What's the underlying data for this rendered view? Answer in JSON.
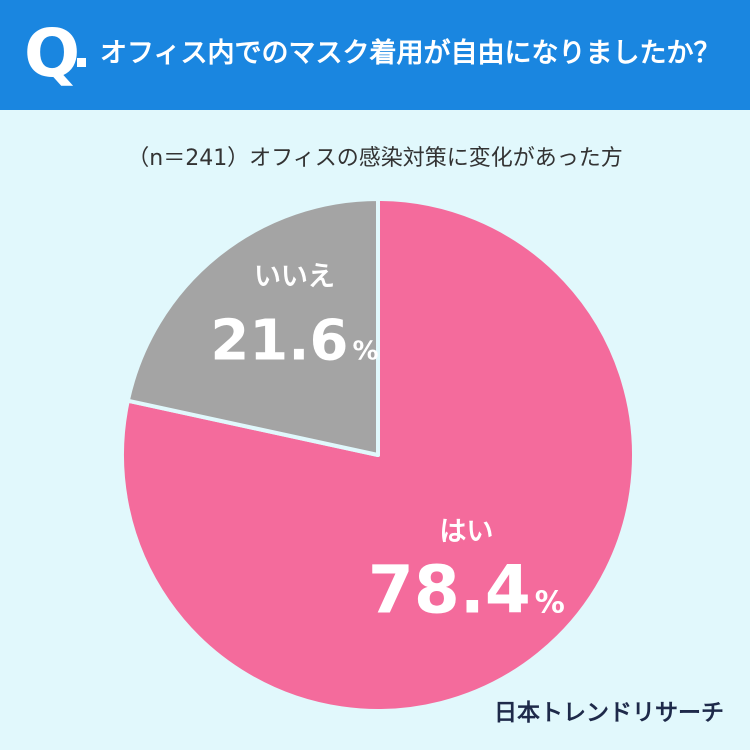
{
  "header": {
    "q_mark": "Q",
    "question": "オフィス内でのマスク着用が自由になりましたか？"
  },
  "subtitle": "（n＝241）オフィスの感染対策に変化があった方",
  "chart_data": {
    "type": "pie",
    "categories": [
      "はい",
      "いいえ"
    ],
    "values": [
      78.4,
      21.6
    ],
    "value_labels": [
      "78.4",
      "21.6"
    ],
    "unit": "%",
    "colors": [
      "#f46b9c",
      "#a4a4a4"
    ],
    "start_angle": "12 o'clock",
    "direction": "clockwise"
  },
  "colors": {
    "header_bg": "#1a86e0",
    "page_bg": "#e1f8fc",
    "slice_border": "#e1f8fc"
  },
  "brand": "日本トレンドリサーチ"
}
